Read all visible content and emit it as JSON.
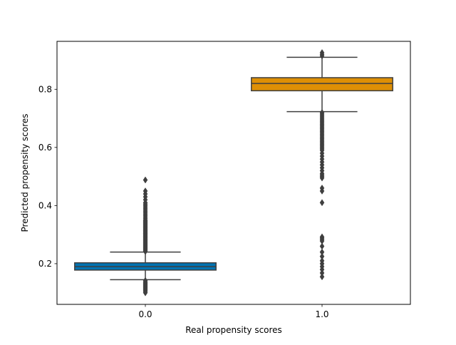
{
  "chart_data": {
    "type": "box",
    "title": "",
    "xlabel": "Real propensity scores",
    "ylabel": "Predicted propensity scores",
    "categories": [
      "0.0",
      "1.0"
    ],
    "ylim": [
      0.06,
      0.965
    ],
    "yticks": [
      0.2,
      0.4,
      0.6,
      0.8
    ],
    "ytick_labels": [
      "0.2",
      "0.4",
      "0.6",
      "0.8"
    ],
    "grid": false,
    "series": [
      {
        "category": "0.0",
        "color": "#0173B2",
        "whisker_low": 0.145,
        "q1": 0.178,
        "median": 0.19,
        "q3": 0.203,
        "whisker_high": 0.24,
        "outliers_high": [
          0.242,
          0.245,
          0.248,
          0.25,
          0.253,
          0.255,
          0.258,
          0.26,
          0.263,
          0.265,
          0.268,
          0.27,
          0.273,
          0.275,
          0.278,
          0.28,
          0.283,
          0.285,
          0.288,
          0.29,
          0.293,
          0.295,
          0.298,
          0.3,
          0.303,
          0.305,
          0.308,
          0.31,
          0.313,
          0.315,
          0.318,
          0.32,
          0.323,
          0.325,
          0.328,
          0.33,
          0.333,
          0.335,
          0.338,
          0.34,
          0.343,
          0.345,
          0.348,
          0.35,
          0.355,
          0.36,
          0.365,
          0.37,
          0.375,
          0.38,
          0.385,
          0.39,
          0.395,
          0.4,
          0.405,
          0.41,
          0.42,
          0.43,
          0.44,
          0.45,
          0.488
        ],
        "outliers_low": [
          0.142,
          0.138,
          0.135,
          0.132,
          0.13,
          0.128,
          0.125,
          0.123,
          0.12,
          0.118,
          0.115,
          0.112,
          0.11,
          0.107,
          0.104,
          0.1
        ]
      },
      {
        "category": "1.0",
        "color": "#DE8F05",
        "whisker_low": 0.723,
        "q1": 0.795,
        "median": 0.82,
        "q3": 0.84,
        "whisker_high": 0.91,
        "outliers_high": [
          0.915,
          0.92,
          0.926
        ],
        "outliers_low": [
          0.72,
          0.715,
          0.71,
          0.705,
          0.7,
          0.695,
          0.69,
          0.685,
          0.68,
          0.675,
          0.67,
          0.665,
          0.66,
          0.655,
          0.65,
          0.645,
          0.64,
          0.635,
          0.63,
          0.625,
          0.62,
          0.615,
          0.61,
          0.605,
          0.6,
          0.595,
          0.59,
          0.58,
          0.57,
          0.56,
          0.55,
          0.54,
          0.53,
          0.52,
          0.51,
          0.505,
          0.5,
          0.495,
          0.46,
          0.45,
          0.41,
          0.292,
          0.288,
          0.283,
          0.278,
          0.26,
          0.24,
          0.225,
          0.21,
          0.2,
          0.19,
          0.18,
          0.168,
          0.155
        ]
      }
    ]
  }
}
